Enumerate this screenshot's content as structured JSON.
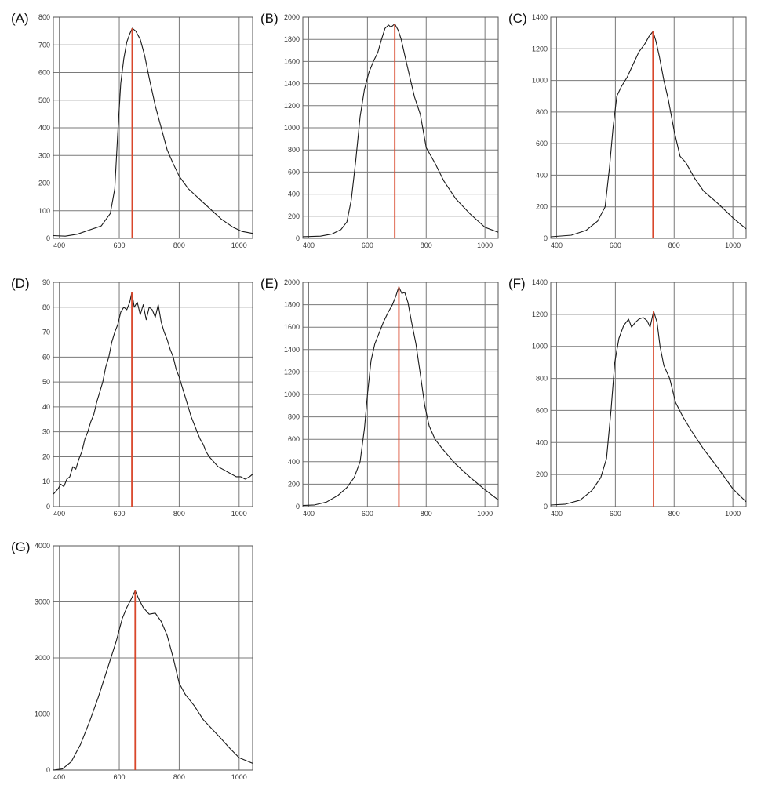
{
  "figure": {
    "panel_labels": [
      "(A)",
      "(B)",
      "(C)",
      "(D)",
      "(E)",
      "(F)",
      "(G)"
    ]
  },
  "colors": {
    "curve": "#1a1a1a",
    "marker": "#d9472b",
    "grid": "#7a7a7a",
    "frame": "#555555",
    "tick_text": "#333333"
  },
  "chart_data": [
    {
      "type": "line",
      "label": "(A)",
      "xlim": [
        380,
        1045
      ],
      "ylim": [
        0,
        800
      ],
      "x_ticks": [
        400,
        600,
        800,
        1000
      ],
      "y_ticks": [
        0,
        100,
        200,
        300,
        400,
        500,
        600,
        700,
        800
      ],
      "grid": true,
      "peak_x": 643,
      "peak_y": 760,
      "series": [
        {
          "points": [
            [
              380,
              10
            ],
            [
              420,
              8
            ],
            [
              460,
              15
            ],
            [
              500,
              30
            ],
            [
              540,
              45
            ],
            [
              570,
              90
            ],
            [
              585,
              180
            ],
            [
              595,
              380
            ],
            [
              605,
              560
            ],
            [
              615,
              650
            ],
            [
              625,
              710
            ],
            [
              635,
              740
            ],
            [
              643,
              760
            ],
            [
              655,
              750
            ],
            [
              670,
              720
            ],
            [
              685,
              660
            ],
            [
              700,
              580
            ],
            [
              720,
              480
            ],
            [
              740,
              400
            ],
            [
              760,
              320
            ],
            [
              780,
              270
            ],
            [
              800,
              225
            ],
            [
              830,
              180
            ],
            [
              860,
              150
            ],
            [
              900,
              110
            ],
            [
              940,
              70
            ],
            [
              980,
              40
            ],
            [
              1010,
              25
            ],
            [
              1045,
              18
            ]
          ]
        }
      ]
    },
    {
      "type": "line",
      "label": "(B)",
      "xlim": [
        380,
        1045
      ],
      "ylim": [
        0,
        2000
      ],
      "x_ticks": [
        400,
        600,
        800,
        1000
      ],
      "y_ticks": [
        0,
        200,
        400,
        600,
        800,
        1000,
        1200,
        1400,
        1600,
        1800,
        2000
      ],
      "grid": true,
      "peak_x": 693,
      "peak_y": 1940,
      "series": [
        {
          "points": [
            [
              380,
              15
            ],
            [
              440,
              20
            ],
            [
              480,
              40
            ],
            [
              510,
              80
            ],
            [
              530,
              150
            ],
            [
              545,
              350
            ],
            [
              560,
              700
            ],
            [
              575,
              1100
            ],
            [
              590,
              1350
            ],
            [
              605,
              1500
            ],
            [
              620,
              1600
            ],
            [
              635,
              1680
            ],
            [
              648,
              1800
            ],
            [
              660,
              1900
            ],
            [
              672,
              1930
            ],
            [
              680,
              1910
            ],
            [
              693,
              1940
            ],
            [
              705,
              1880
            ],
            [
              715,
              1800
            ],
            [
              730,
              1620
            ],
            [
              745,
              1450
            ],
            [
              760,
              1280
            ],
            [
              780,
              1120
            ],
            [
              800,
              820
            ],
            [
              830,
              680
            ],
            [
              860,
              520
            ],
            [
              900,
              360
            ],
            [
              950,
              220
            ],
            [
              1000,
              100
            ],
            [
              1045,
              55
            ]
          ]
        }
      ]
    },
    {
      "type": "line",
      "label": "(C)",
      "xlim": [
        380,
        1045
      ],
      "ylim": [
        0,
        1400
      ],
      "x_ticks": [
        400,
        600,
        800,
        1000
      ],
      "y_ticks": [
        0,
        200,
        400,
        600,
        800,
        1000,
        1200,
        1400
      ],
      "grid": true,
      "peak_x": 728,
      "peak_y": 1310,
      "series": [
        {
          "points": [
            [
              380,
              10
            ],
            [
              450,
              20
            ],
            [
              500,
              50
            ],
            [
              540,
              110
            ],
            [
              565,
              200
            ],
            [
              580,
              450
            ],
            [
              592,
              700
            ],
            [
              605,
              900
            ],
            [
              620,
              960
            ],
            [
              640,
              1020
            ],
            [
              660,
              1100
            ],
            [
              680,
              1180
            ],
            [
              700,
              1230
            ],
            [
              715,
              1280
            ],
            [
              728,
              1310
            ],
            [
              738,
              1250
            ],
            [
              750,
              1150
            ],
            [
              765,
              1000
            ],
            [
              780,
              880
            ],
            [
              800,
              680
            ],
            [
              820,
              520
            ],
            [
              840,
              480
            ],
            [
              870,
              380
            ],
            [
              900,
              300
            ],
            [
              950,
              220
            ],
            [
              1000,
              130
            ],
            [
              1045,
              60
            ]
          ]
        }
      ]
    },
    {
      "type": "line",
      "label": "(D)",
      "xlim": [
        380,
        1045
      ],
      "ylim": [
        0,
        90
      ],
      "x_ticks": [
        400,
        600,
        800,
        1000
      ],
      "y_ticks": [
        0,
        10,
        20,
        30,
        40,
        50,
        60,
        70,
        80,
        90
      ],
      "grid": true,
      "peak_x": 642,
      "peak_y": 86,
      "series": [
        {
          "points": [
            [
              380,
              5
            ],
            [
              395,
              7
            ],
            [
              405,
              9
            ],
            [
              415,
              8
            ],
            [
              425,
              11
            ],
            [
              435,
              12
            ],
            [
              445,
              16
            ],
            [
              455,
              15
            ],
            [
              465,
              19
            ],
            [
              475,
              22
            ],
            [
              485,
              27
            ],
            [
              495,
              30
            ],
            [
              505,
              34
            ],
            [
              515,
              37
            ],
            [
              525,
              42
            ],
            [
              535,
              46
            ],
            [
              545,
              50
            ],
            [
              555,
              56
            ],
            [
              565,
              60
            ],
            [
              575,
              66
            ],
            [
              585,
              70
            ],
            [
              595,
              73
            ],
            [
              605,
              78
            ],
            [
              615,
              80
            ],
            [
              625,
              79
            ],
            [
              635,
              82
            ],
            [
              642,
              86
            ],
            [
              650,
              80
            ],
            [
              660,
              82
            ],
            [
              670,
              77
            ],
            [
              680,
              81
            ],
            [
              690,
              75
            ],
            [
              700,
              80
            ],
            [
              710,
              79
            ],
            [
              720,
              76
            ],
            [
              730,
              81
            ],
            [
              740,
              74
            ],
            [
              750,
              70
            ],
            [
              760,
              67
            ],
            [
              770,
              63
            ],
            [
              780,
              60
            ],
            [
              790,
              55
            ],
            [
              800,
              52
            ],
            [
              810,
              48
            ],
            [
              820,
              44
            ],
            [
              830,
              40
            ],
            [
              840,
              36
            ],
            [
              850,
              33
            ],
            [
              860,
              30
            ],
            [
              870,
              27
            ],
            [
              880,
              25
            ],
            [
              890,
              22
            ],
            [
              900,
              20
            ],
            [
              915,
              18
            ],
            [
              930,
              16
            ],
            [
              945,
              15
            ],
            [
              960,
              14
            ],
            [
              975,
              13
            ],
            [
              990,
              12
            ],
            [
              1005,
              12
            ],
            [
              1020,
              11
            ],
            [
              1035,
              12
            ],
            [
              1045,
              13
            ]
          ]
        }
      ]
    },
    {
      "type": "line",
      "label": "(E)",
      "xlim": [
        380,
        1045
      ],
      "ylim": [
        0,
        2000
      ],
      "x_ticks": [
        400,
        600,
        800,
        1000
      ],
      "y_ticks": [
        0,
        200,
        400,
        600,
        800,
        1000,
        1200,
        1400,
        1600,
        1800,
        2000
      ],
      "grid": true,
      "peak_x": 707,
      "peak_y": 1960,
      "series": [
        {
          "points": [
            [
              380,
              10
            ],
            [
              420,
              15
            ],
            [
              460,
              40
            ],
            [
              500,
              100
            ],
            [
              530,
              170
            ],
            [
              555,
              260
            ],
            [
              575,
              400
            ],
            [
              590,
              700
            ],
            [
              600,
              1000
            ],
            [
              612,
              1300
            ],
            [
              625,
              1450
            ],
            [
              640,
              1550
            ],
            [
              655,
              1650
            ],
            [
              670,
              1730
            ],
            [
              685,
              1800
            ],
            [
              697,
              1880
            ],
            [
              707,
              1960
            ],
            [
              717,
              1900
            ],
            [
              727,
              1910
            ],
            [
              738,
              1820
            ],
            [
              750,
              1650
            ],
            [
              765,
              1450
            ],
            [
              780,
              1180
            ],
            [
              795,
              900
            ],
            [
              810,
              720
            ],
            [
              830,
              600
            ],
            [
              860,
              500
            ],
            [
              900,
              380
            ],
            [
              950,
              260
            ],
            [
              1000,
              150
            ],
            [
              1045,
              60
            ]
          ]
        }
      ]
    },
    {
      "type": "line",
      "label": "(F)",
      "xlim": [
        380,
        1045
      ],
      "ylim": [
        0,
        1400
      ],
      "x_ticks": [
        400,
        600,
        800,
        1000
      ],
      "y_ticks": [
        0,
        200,
        400,
        600,
        800,
        1000,
        1200,
        1400
      ],
      "grid": true,
      "peak_x": 730,
      "peak_y": 1220,
      "series": [
        {
          "points": [
            [
              380,
              10
            ],
            [
              430,
              15
            ],
            [
              480,
              40
            ],
            [
              520,
              100
            ],
            [
              550,
              180
            ],
            [
              570,
              300
            ],
            [
              585,
              600
            ],
            [
              598,
              900
            ],
            [
              612,
              1050
            ],
            [
              628,
              1130
            ],
            [
              645,
              1170
            ],
            [
              655,
              1120
            ],
            [
              668,
              1150
            ],
            [
              680,
              1170
            ],
            [
              695,
              1180
            ],
            [
              708,
              1160
            ],
            [
              718,
              1120
            ],
            [
              730,
              1220
            ],
            [
              742,
              1150
            ],
            [
              752,
              1000
            ],
            [
              765,
              880
            ],
            [
              785,
              800
            ],
            [
              805,
              650
            ],
            [
              830,
              560
            ],
            [
              860,
              470
            ],
            [
              900,
              360
            ],
            [
              950,
              240
            ],
            [
              1000,
              110
            ],
            [
              1045,
              30
            ]
          ]
        }
      ]
    },
    {
      "type": "line",
      "label": "(G)",
      "xlim": [
        380,
        1045
      ],
      "ylim": [
        0,
        4000
      ],
      "x_ticks": [
        400,
        600,
        800,
        1000
      ],
      "y_ticks": [
        0,
        1000,
        2000,
        3000,
        4000
      ],
      "grid": true,
      "peak_x": 653,
      "peak_y": 3200,
      "series": [
        {
          "points": [
            [
              380,
              0
            ],
            [
              410,
              20
            ],
            [
              440,
              150
            ],
            [
              470,
              450
            ],
            [
              500,
              850
            ],
            [
              530,
              1300
            ],
            [
              560,
              1800
            ],
            [
              590,
              2300
            ],
            [
              610,
              2700
            ],
            [
              625,
              2900
            ],
            [
              640,
              3050
            ],
            [
              653,
              3200
            ],
            [
              665,
              3050
            ],
            [
              680,
              2900
            ],
            [
              700,
              2780
            ],
            [
              720,
              2800
            ],
            [
              740,
              2650
            ],
            [
              760,
              2400
            ],
            [
              780,
              2000
            ],
            [
              800,
              1550
            ],
            [
              820,
              1350
            ],
            [
              850,
              1150
            ],
            [
              880,
              900
            ],
            [
              910,
              730
            ],
            [
              940,
              560
            ],
            [
              970,
              380
            ],
            [
              1000,
              220
            ],
            [
              1045,
              120
            ]
          ]
        }
      ]
    }
  ]
}
